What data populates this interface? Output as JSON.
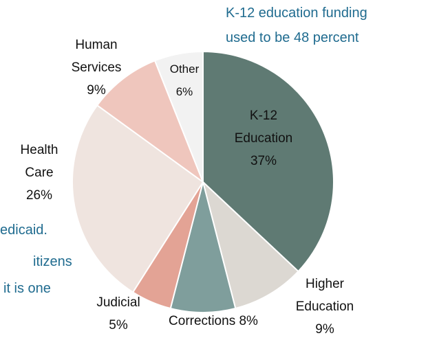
{
  "chart_data": {
    "type": "pie",
    "categories": [
      "K-12 Education",
      "Higher Education",
      "Corrections",
      "Judicial",
      "Health Care",
      "Human Services",
      "Other"
    ],
    "values": [
      37,
      9,
      8,
      5,
      26,
      9,
      6
    ],
    "value_labels": [
      "37%",
      "9%",
      "8%",
      "5%",
      "26%",
      "9%",
      "6%"
    ],
    "colors": [
      "#5f7a73",
      "#dcd8d2",
      "#7f9e9c",
      "#e3a395",
      "#efe4df",
      "#efc6bd",
      "#f2f2f2"
    ],
    "annotations": [
      "K-12 education funding",
      "used to be 48 percent",
      "edicaid.",
      "itizens",
      "it is one"
    ]
  }
}
